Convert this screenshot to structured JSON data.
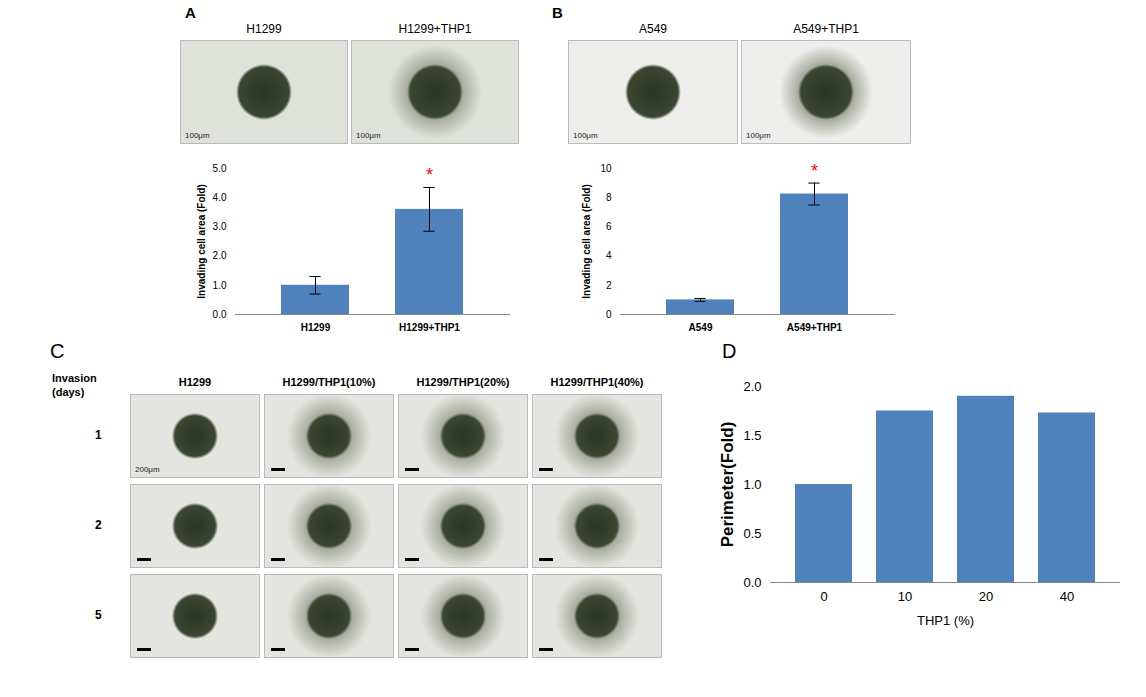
{
  "chart_data": [
    {
      "type": "bar",
      "categories": [
        "H1299",
        "H1299+THP1"
      ],
      "values": [
        1,
        3.6
      ],
      "errors": [
        0.3,
        0.75
      ],
      "color": "#4f81bd",
      "ylabel": "Invading cell area (Fold)",
      "ylim": [
        0,
        5
      ],
      "yticks": [
        0,
        1,
        2,
        3,
        4,
        5
      ],
      "annotations": [
        {
          "text": "*",
          "category": "H1299+THP1",
          "color": "#ff0000"
        }
      ]
    },
    {
      "type": "bar",
      "categories": [
        "A549",
        "A549+THP1"
      ],
      "values": [
        1,
        8.25
      ],
      "errors": [
        0.1,
        0.75
      ],
      "color": "#4f81bd",
      "ylabel": "Invading cell area (Fold)",
      "ylim": [
        0,
        10
      ],
      "yticks": [
        0,
        2,
        4,
        6,
        8,
        10
      ],
      "annotations": [
        {
          "text": "*",
          "category": "A549+THP1",
          "color": "#ff0000"
        }
      ]
    },
    {
      "type": "bar",
      "panel": "D",
      "categories": [
        "0",
        "10",
        "20",
        "40"
      ],
      "values": [
        1,
        1.75,
        1.9,
        1.73
      ],
      "color": "#4f81bd",
      "ylabel": "Perimeter(Fold)",
      "xlabel": "THP1 (%)",
      "ylim": [
        0,
        2
      ],
      "yticks": [
        0,
        0.5,
        1,
        1.5,
        2
      ]
    }
  ],
  "micrographs": [
    {
      "panel": "A",
      "labels": [
        "H1299",
        "H1299+THP1"
      ],
      "scale_bar": "100μm"
    },
    {
      "panel": "B",
      "labels": [
        "A549",
        "A549+THP1"
      ],
      "scale_bar": "100μm"
    },
    {
      "panel": "C",
      "row_title": "Invasion (days)",
      "rows": [
        "1",
        "2",
        "5"
      ],
      "columns": [
        "H1299",
        "H1299/THP1(10%)",
        "H1299/THP1(20%)",
        "H1299/THP1(40%)"
      ],
      "scale_bar": "200μm"
    }
  ]
}
